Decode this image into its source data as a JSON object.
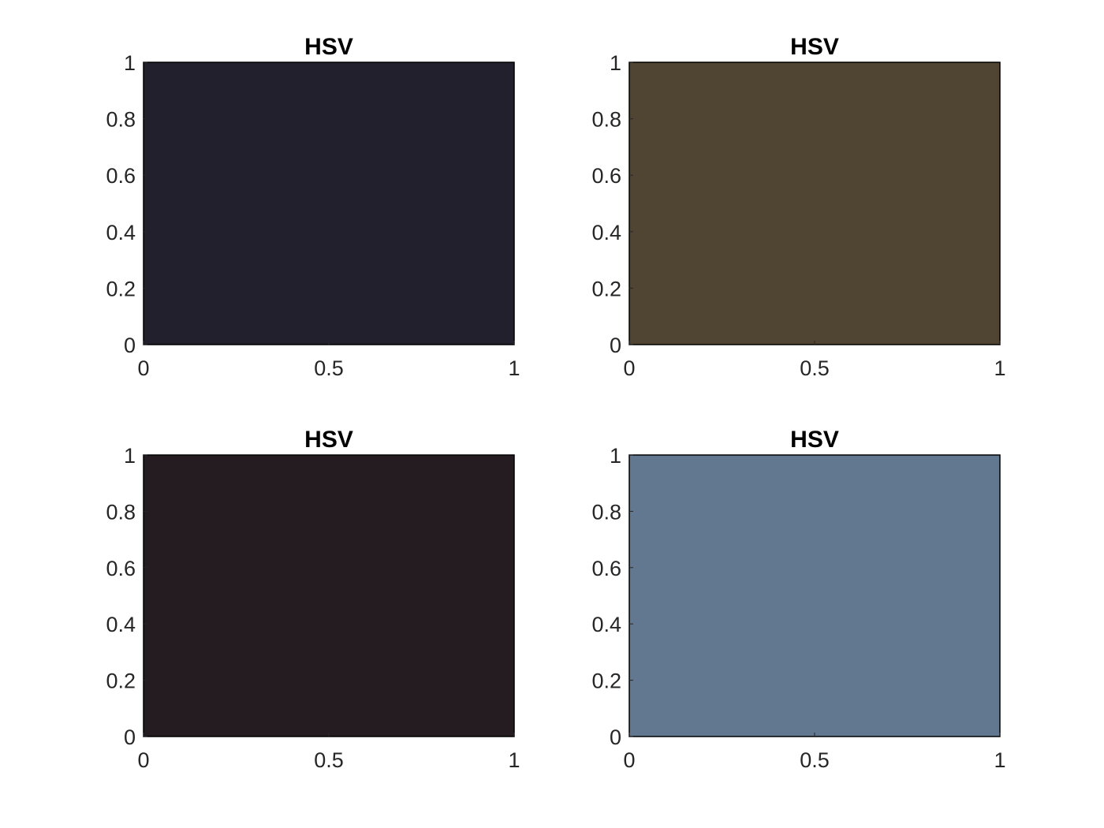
{
  "chart_data": [
    {
      "type": "heatmap",
      "title": "HSV",
      "fill_color": "#23202e",
      "xlim": [
        0,
        1
      ],
      "ylim": [
        0,
        1
      ],
      "xticks": [
        "0",
        "0.5",
        "1"
      ],
      "yticks": [
        "0",
        "0.2",
        "0.4",
        "0.6",
        "0.8",
        "1"
      ],
      "grid": false
    },
    {
      "type": "heatmap",
      "title": "HSV",
      "fill_color": "#504433",
      "xlim": [
        0,
        1
      ],
      "ylim": [
        0,
        1
      ],
      "xticks": [
        "0",
        "0.5",
        "1"
      ],
      "yticks": [
        "0",
        "0.2",
        "0.4",
        "0.6",
        "0.8",
        "1"
      ],
      "grid": false
    },
    {
      "type": "heatmap",
      "title": "HSV",
      "fill_color": "#241c21",
      "xlim": [
        0,
        1
      ],
      "ylim": [
        0,
        1
      ],
      "xticks": [
        "0",
        "0.5",
        "1"
      ],
      "yticks": [
        "0",
        "0.2",
        "0.4",
        "0.6",
        "0.8",
        "1"
      ],
      "grid": false
    },
    {
      "type": "heatmap",
      "title": "HSV",
      "fill_color": "#627790",
      "xlim": [
        0,
        1
      ],
      "ylim": [
        0,
        1
      ],
      "xticks": [
        "0",
        "0.5",
        "1"
      ],
      "yticks": [
        "0",
        "0.2",
        "0.4",
        "0.6",
        "0.8",
        "1"
      ],
      "grid": false
    }
  ]
}
